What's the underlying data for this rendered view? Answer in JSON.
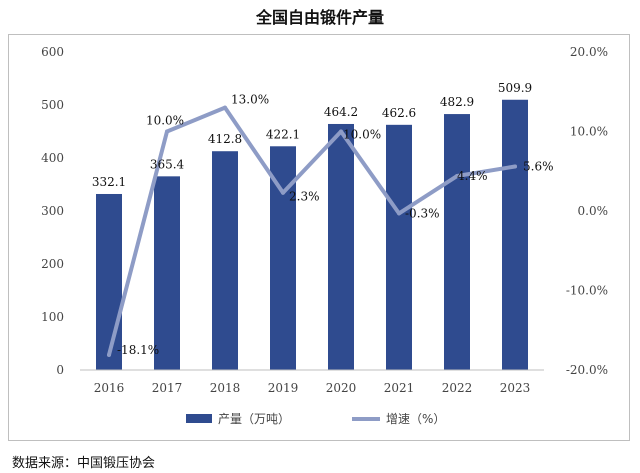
{
  "chart_title": "全国自由锻件产量",
  "source": "数据来源：中国锻压协会",
  "chart_data": {
    "type": "bar",
    "title": "全国自由锻件产量",
    "categories": [
      "2016",
      "2017",
      "2018",
      "2019",
      "2020",
      "2021",
      "2022",
      "2023"
    ],
    "series": [
      {
        "name": "产量（万吨）",
        "type": "bar",
        "axis": "left",
        "color": "#2f4b8f",
        "values": [
          332.1,
          365.4,
          412.8,
          422.1,
          464.2,
          462.6,
          482.9,
          509.9
        ],
        "labels": [
          "332.1",
          "365.4",
          "412.8",
          "422.1",
          "464.2",
          "462.6",
          "482.9",
          "509.9"
        ]
      },
      {
        "name": "增速（%）",
        "type": "line",
        "axis": "right",
        "color": "#8e9cc6",
        "values": [
          -18.1,
          10.0,
          13.0,
          2.3,
          10.0,
          -0.3,
          4.4,
          5.6
        ],
        "labels": [
          "-18.1%",
          "10.0%",
          "13.0%",
          "2.3%",
          "10.0%",
          "-0.3%",
          "4.4%",
          "5.6%"
        ]
      }
    ],
    "y_left": {
      "min": 0,
      "max": 600,
      "ticks": [
        "0",
        "100",
        "200",
        "300",
        "400",
        "500",
        "600"
      ]
    },
    "y_right": {
      "min": -20,
      "max": 20,
      "ticks": [
        "-20.0%",
        "-10.0%",
        "0.0%",
        "10.0%",
        "20.0%"
      ]
    },
    "grid": false,
    "legend_position": "bottom"
  }
}
